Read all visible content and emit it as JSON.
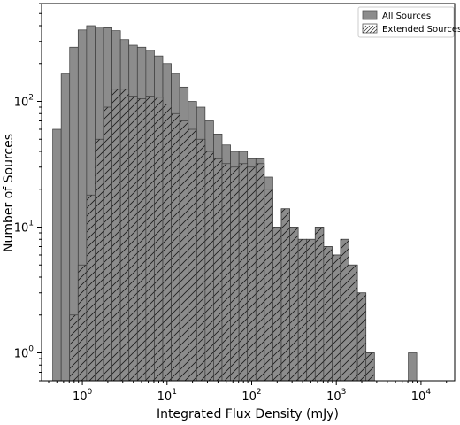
{
  "chart_data": {
    "type": "bar",
    "xlabel": "Integrated Flux Density (mJy)",
    "ylabel": "Number of Sources",
    "xscale": "log",
    "yscale": "log",
    "xlim": [
      0.33,
      25000
    ],
    "ylim": [
      0.6,
      600
    ],
    "bins_log10_start": -0.35,
    "bin_width_log10": 0.1,
    "series": [
      {
        "name": "All Sources",
        "color": "#8c8c8c",
        "hatch": "none",
        "values": [
          60,
          165,
          270,
          370,
          400,
          390,
          385,
          365,
          310,
          280,
          270,
          255,
          230,
          200,
          165,
          130,
          100,
          90,
          70,
          55,
          45,
          40,
          40,
          35,
          35,
          25,
          10,
          14,
          10,
          8,
          8,
          10,
          7,
          6,
          8,
          5,
          3,
          1,
          0,
          0,
          0,
          0,
          1
        ]
      },
      {
        "name": "Extended Sources",
        "color": "#8c8c8c",
        "hatch": "diagonal",
        "values": [
          0,
          0,
          2,
          5,
          18,
          50,
          90,
          125,
          125,
          110,
          105,
          110,
          108,
          95,
          80,
          70,
          60,
          50,
          40,
          35,
          32,
          30,
          32,
          30,
          32,
          20,
          10,
          14,
          10,
          8,
          8,
          10,
          7,
          6,
          8,
          5,
          3,
          1,
          0,
          0,
          0,
          0,
          0
        ]
      }
    ],
    "x_ticks": [
      {
        "base": "10",
        "exp": "0",
        "value": 1
      },
      {
        "base": "10",
        "exp": "1",
        "value": 10
      },
      {
        "base": "10",
        "exp": "2",
        "value": 100
      },
      {
        "base": "10",
        "exp": "3",
        "value": 1000
      },
      {
        "base": "10",
        "exp": "4",
        "value": 10000
      }
    ],
    "y_ticks": [
      {
        "base": "10",
        "exp": "0",
        "value": 1
      },
      {
        "base": "10",
        "exp": "1",
        "value": 10
      },
      {
        "base": "10",
        "exp": "2",
        "value": 100
      }
    ],
    "legend": {
      "position": "top-right",
      "entries": [
        "All Sources",
        "Extended Sources"
      ]
    }
  }
}
